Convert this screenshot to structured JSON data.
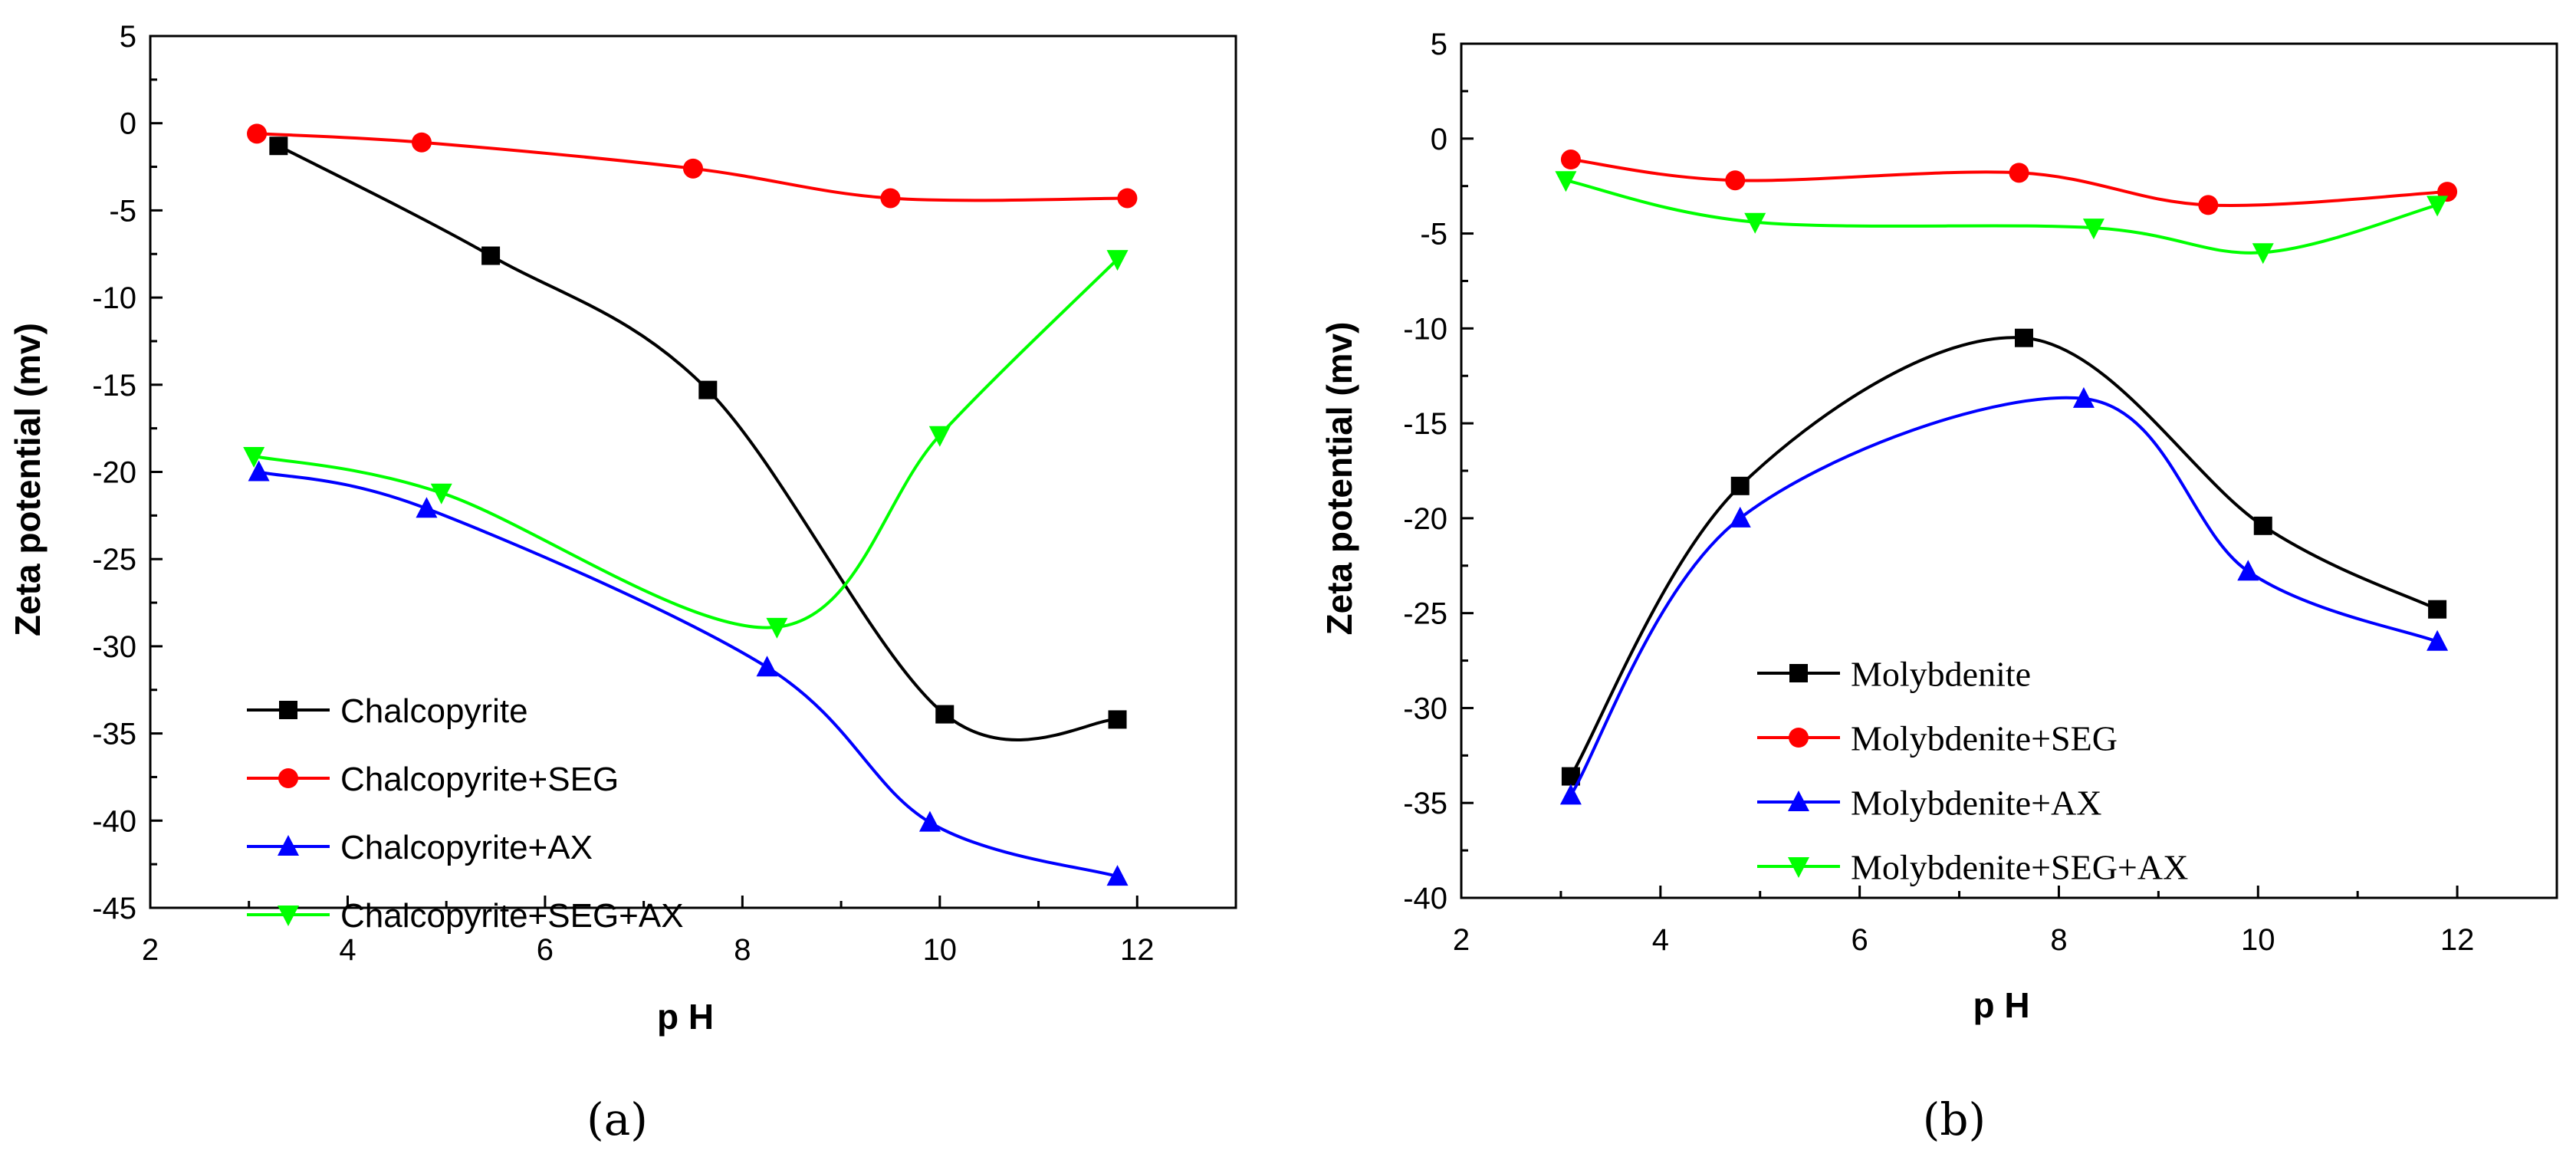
{
  "figure": {
    "background": "#ffffff"
  },
  "chart_data": [
    {
      "type": "line",
      "panel": "(a)",
      "xlabel": "p H",
      "ylabel": "Zeta potential (mv)",
      "xlim": [
        2,
        13
      ],
      "ylim": [
        -45,
        5
      ],
      "xticks": [
        2,
        4,
        6,
        8,
        10,
        12
      ],
      "yticks": [
        5,
        0,
        -5,
        -10,
        -15,
        -20,
        -25,
        -30,
        -35,
        -40,
        -45
      ],
      "grid": false,
      "legend_position": "bottom-left",
      "series": [
        {
          "name": "Chalcopyrite",
          "color": "#000000",
          "marker": "square",
          "x": [
            3.3,
            5.45,
            7.65,
            10.05,
            11.8
          ],
          "y": [
            -1.3,
            -7.6,
            -15.3,
            -33.9,
            -34.2
          ]
        },
        {
          "name": "Chalcopyrite+SEG",
          "color": "#ff0000",
          "marker": "circle",
          "x": [
            3.08,
            4.75,
            7.5,
            9.5,
            11.9
          ],
          "y": [
            -0.6,
            -1.1,
            -2.6,
            -4.3,
            -4.3
          ]
        },
        {
          "name": "Chalcopyrite+AX",
          "color": "#0000ff",
          "marker": "triangle-up",
          "x": [
            3.1,
            4.8,
            8.25,
            9.9,
            11.8
          ],
          "y": [
            -20.0,
            -22.1,
            -31.2,
            -40.1,
            -43.2
          ]
        },
        {
          "name": "Chalcopyrite+SEG+AX",
          "color": "#00ff00",
          "marker": "triangle-down",
          "x": [
            3.05,
            4.95,
            8.35,
            10.0,
            11.8
          ],
          "y": [
            -19.1,
            -21.2,
            -28.9,
            -17.9,
            -7.8
          ]
        }
      ]
    },
    {
      "type": "line",
      "panel": "(b)",
      "xlabel": "p H",
      "ylabel": "Zeta potential (mv)",
      "xlim": [
        2,
        13
      ],
      "ylim": [
        -40,
        5
      ],
      "xticks": [
        2,
        4,
        6,
        8,
        10,
        12
      ],
      "yticks": [
        5,
        0,
        -5,
        -10,
        -15,
        -20,
        -25,
        -30,
        -35,
        -40
      ],
      "grid": false,
      "legend_position": "bottom-left",
      "series": [
        {
          "name": "Molybdenite",
          "color": "#000000",
          "marker": "square",
          "x": [
            3.1,
            4.8,
            7.65,
            10.05,
            11.8
          ],
          "y": [
            -33.6,
            -18.3,
            -10.5,
            -20.4,
            -24.8
          ]
        },
        {
          "name": "Molybdenite+SEG",
          "color": "#ff0000",
          "marker": "circle",
          "x": [
            3.1,
            4.75,
            7.6,
            9.5,
            11.9
          ],
          "y": [
            -1.1,
            -2.2,
            -1.8,
            -3.5,
            -2.8
          ]
        },
        {
          "name": "Molybdenite+AX",
          "color": "#0000ff",
          "marker": "triangle-up",
          "x": [
            3.1,
            4.8,
            8.25,
            9.9,
            11.8
          ],
          "y": [
            -34.6,
            -20.0,
            -13.7,
            -22.8,
            -26.5
          ]
        },
        {
          "name": "Molybdenite+SEG+AX",
          "color": "#00ff00",
          "marker": "triangle-down",
          "x": [
            3.05,
            4.95,
            8.35,
            10.05,
            11.8
          ],
          "y": [
            -2.2,
            -4.4,
            -4.7,
            -6.0,
            -3.5
          ]
        }
      ]
    }
  ]
}
